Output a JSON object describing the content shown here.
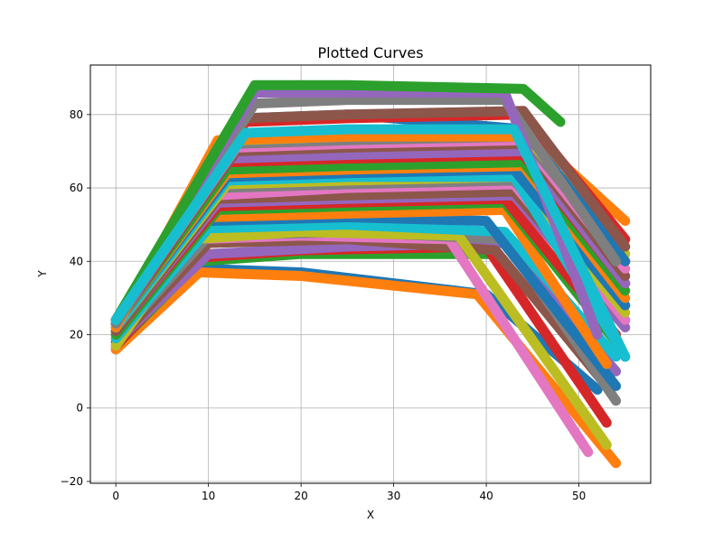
{
  "chart_data": {
    "type": "line",
    "title": "Plotted Curves",
    "xlabel": "X",
    "ylabel": "Y",
    "xlim": [
      -2.75,
      57.75
    ],
    "ylim": [
      -20.5,
      93.5
    ],
    "xticks": [
      0,
      10,
      20,
      30,
      40,
      50
    ],
    "xtick_labels": [
      "0",
      "10",
      "20",
      "30",
      "40",
      "50"
    ],
    "yticks": [
      -20,
      0,
      20,
      40,
      60,
      80
    ],
    "ytick_labels": [
      "−20",
      "0",
      "20",
      "40",
      "60",
      "80"
    ],
    "grid": true,
    "legend": "none",
    "series_style": "thick round-capped lines, default color cycle",
    "colors": [
      "#1f77b4",
      "#ff7f0e",
      "#2ca02c",
      "#d62728",
      "#9467bd",
      "#8c564b",
      "#e377c2",
      "#7f7f7f",
      "#bcbd22",
      "#17becf"
    ],
    "series": [
      {
        "color": "#1f77b4",
        "x": [
          0,
          9,
          20,
          40,
          52
        ],
        "y": [
          16,
          38,
          37,
          31,
          5
        ]
      },
      {
        "color": "#ff7f0e",
        "x": [
          0,
          9,
          20,
          39,
          54
        ],
        "y": [
          16,
          37,
          36,
          31,
          -15
        ]
      },
      {
        "color": "#2ca02c",
        "x": [
          0,
          9,
          20,
          41,
          53
        ],
        "y": [
          17,
          40,
          42,
          42,
          8
        ]
      },
      {
        "color": "#d62728",
        "x": [
          0,
          9,
          20,
          40,
          53
        ],
        "y": [
          17,
          41,
          43,
          44,
          -4
        ]
      },
      {
        "color": "#9467bd",
        "x": [
          0,
          10,
          25,
          42,
          54
        ],
        "y": [
          18,
          42,
          44,
          45,
          10
        ]
      },
      {
        "color": "#8c564b",
        "x": [
          0,
          10,
          25,
          41,
          53
        ],
        "y": [
          18,
          45,
          46,
          43,
          6
        ]
      },
      {
        "color": "#e377c2",
        "x": [
          0,
          8,
          20,
          36,
          51
        ],
        "y": [
          17,
          46,
          47,
          46,
          -12
        ]
      },
      {
        "color": "#7f7f7f",
        "x": [
          0,
          10,
          25,
          42,
          54
        ],
        "y": [
          19,
          47,
          48,
          46,
          2
        ]
      },
      {
        "color": "#bcbd22",
        "x": [
          0,
          8,
          20,
          37,
          53
        ],
        "y": [
          17,
          46,
          48,
          47,
          -10
        ]
      },
      {
        "color": "#17becf",
        "x": [
          0,
          10,
          25,
          42,
          54
        ],
        "y": [
          19,
          49,
          50,
          48,
          14
        ]
      },
      {
        "color": "#1f77b4",
        "x": [
          0,
          10,
          25,
          40,
          54
        ],
        "y": [
          20,
          51,
          52,
          51,
          6
        ]
      },
      {
        "color": "#ff7f0e",
        "x": [
          0,
          10,
          25,
          42,
          53
        ],
        "y": [
          20,
          52,
          53,
          54,
          12
        ]
      },
      {
        "color": "#2ca02c",
        "x": [
          0,
          11,
          25,
          42,
          54
        ],
        "y": [
          20,
          54,
          55,
          56,
          18
        ]
      },
      {
        "color": "#d62728",
        "x": [
          0,
          11,
          25,
          42,
          54
        ],
        "y": [
          21,
          55,
          56,
          57,
          20
        ]
      },
      {
        "color": "#9467bd",
        "x": [
          0,
          11,
          25,
          43,
          55
        ],
        "y": [
          21,
          56,
          57,
          58,
          22
        ]
      },
      {
        "color": "#8c564b",
        "x": [
          0,
          11,
          25,
          43,
          55
        ],
        "y": [
          21,
          57,
          58,
          59,
          24
        ]
      },
      {
        "color": "#e377c2",
        "x": [
          0,
          11,
          25,
          43,
          55
        ],
        "y": [
          22,
          58,
          60,
          61,
          24
        ]
      },
      {
        "color": "#7f7f7f",
        "x": [
          0,
          11,
          25,
          43,
          55
        ],
        "y": [
          22,
          60,
          61,
          62,
          28
        ]
      },
      {
        "color": "#bcbd22",
        "x": [
          0,
          12,
          25,
          43,
          55
        ],
        "y": [
          22,
          61,
          62,
          63,
          26
        ]
      },
      {
        "color": "#17becf",
        "x": [
          0,
          12,
          25,
          43,
          55
        ],
        "y": [
          22,
          62,
          63,
          63,
          14
        ]
      },
      {
        "color": "#1f77b4",
        "x": [
          0,
          12,
          25,
          43,
          55
        ],
        "y": [
          23,
          63,
          64,
          65,
          28
        ]
      },
      {
        "color": "#ff7f0e",
        "x": [
          0,
          12,
          25,
          44,
          55
        ],
        "y": [
          23,
          64,
          65,
          66,
          30
        ]
      },
      {
        "color": "#2ca02c",
        "x": [
          0,
          12,
          25,
          44,
          55
        ],
        "y": [
          23,
          65,
          66,
          67,
          32
        ]
      },
      {
        "color": "#d62728",
        "x": [
          0,
          12,
          25,
          44,
          55
        ],
        "y": [
          23,
          67,
          68,
          69,
          34
        ]
      },
      {
        "color": "#9467bd",
        "x": [
          0,
          12,
          25,
          44,
          55
        ],
        "y": [
          23,
          68,
          69,
          70,
          34
        ]
      },
      {
        "color": "#8c564b",
        "x": [
          0,
          13,
          25,
          44,
          55
        ],
        "y": [
          24,
          70,
          71,
          72,
          36
        ]
      },
      {
        "color": "#e377c2",
        "x": [
          0,
          13,
          25,
          44,
          55
        ],
        "y": [
          24,
          71,
          72,
          73,
          38
        ]
      },
      {
        "color": "#7f7f7f",
        "x": [
          0,
          13,
          25,
          44,
          55
        ],
        "y": [
          24,
          72,
          73,
          74,
          40
        ]
      },
      {
        "color": "#bcbd22",
        "x": [
          0,
          13,
          25,
          44,
          55
        ],
        "y": [
          24,
          73,
          74,
          75,
          42
        ]
      },
      {
        "color": "#ff7f0e",
        "x": [
          0,
          11,
          25,
          45,
          55
        ],
        "y": [
          22,
          73,
          74,
          74,
          51
        ]
      },
      {
        "color": "#1f77b4",
        "x": [
          0,
          14,
          25,
          44,
          55
        ],
        "y": [
          24,
          79,
          80,
          76,
          40
        ]
      },
      {
        "color": "#d62728",
        "x": [
          0,
          14,
          25,
          44,
          55
        ],
        "y": [
          24,
          78,
          79,
          80,
          46
        ]
      },
      {
        "color": "#8c564b",
        "x": [
          0,
          14,
          25,
          44,
          55
        ],
        "y": [
          24,
          79,
          80,
          81,
          44
        ]
      },
      {
        "color": "#7f7f7f",
        "x": [
          0,
          15,
          25,
          42,
          54
        ],
        "y": [
          23,
          83,
          84,
          84,
          40
        ]
      },
      {
        "color": "#9467bd",
        "x": [
          0,
          15,
          25,
          42,
          52
        ],
        "y": [
          24,
          86,
          86,
          86,
          20
        ]
      },
      {
        "color": "#2ca02c",
        "x": [
          0,
          15,
          25,
          44,
          48
        ],
        "y": [
          24,
          88,
          88,
          87,
          78
        ]
      },
      {
        "color": "#17becf",
        "x": [
          0,
          14,
          25,
          43,
          55
        ],
        "y": [
          24,
          75,
          76,
          76,
          14
        ]
      }
    ]
  }
}
